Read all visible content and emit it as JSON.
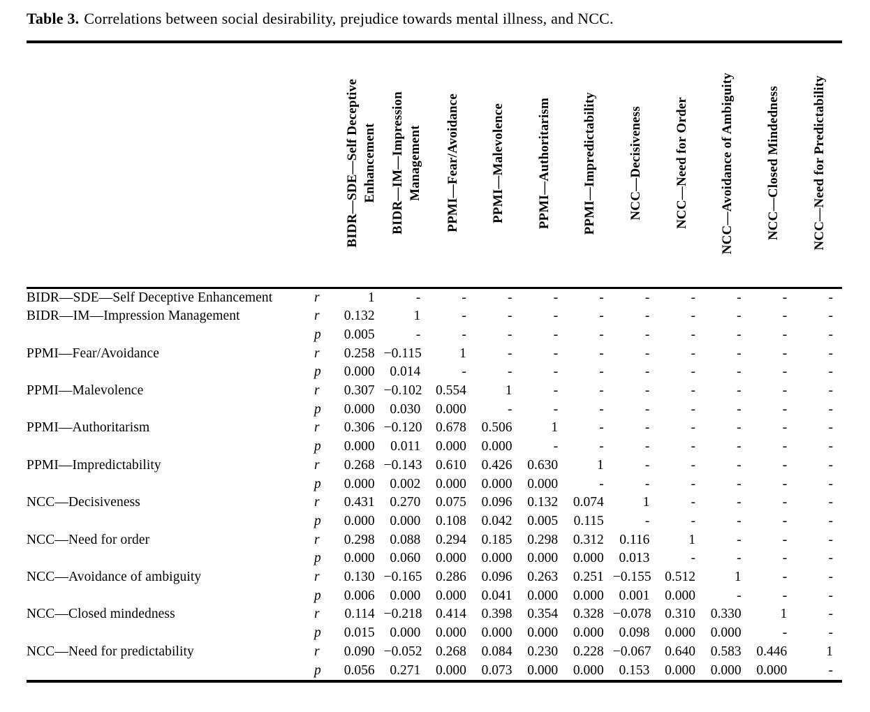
{
  "page": {
    "background": "#ffffff",
    "text_color": "#000000",
    "rule_color": "#000000"
  },
  "title": {
    "label": "Table 3.",
    "text": "Correlations between social desirability, prejudice towards mental illness, and NCC."
  },
  "table": {
    "column_headers": [
      "BIDR—SDE—Self Deceptive\nEnhancement",
      "BIDR—IM—Impression\nManagement",
      "PPMI—Fear/Avoidance",
      "PPMI—Malevolence",
      "PPMI—Authoritarism",
      "PPMI—Impredictability",
      "NCC—Decisiveness",
      "NCC—Need for Order",
      "NCC—Avoidance of Ambiguity",
      "NCC—Closed Mindedness",
      "NCC—Need for Predictability"
    ],
    "rows": [
      {
        "label": "BIDR—SDE—Self Deceptive Enhancement",
        "stat": "r",
        "values": [
          "1",
          "-",
          "-",
          "-",
          "-",
          "-",
          "-",
          "-",
          "-",
          "-",
          "-"
        ]
      },
      {
        "label": "BIDR—IM—Impression Management",
        "stat": "r",
        "values": [
          "0.132",
          "1",
          "-",
          "-",
          "-",
          "-",
          "-",
          "-",
          "-",
          "-",
          "-"
        ]
      },
      {
        "label": "",
        "stat": "p",
        "values": [
          "0.005",
          "-",
          "-",
          "-",
          "-",
          "-",
          "-",
          "-",
          "-",
          "-",
          "-"
        ]
      },
      {
        "label": "PPMI—Fear/Avoidance",
        "stat": "r",
        "values": [
          "0.258",
          "−0.115",
          "1",
          "-",
          "-",
          "-",
          "-",
          "-",
          "-",
          "-",
          "-"
        ]
      },
      {
        "label": "",
        "stat": "p",
        "values": [
          "0.000",
          "0.014",
          "-",
          "-",
          "-",
          "-",
          "-",
          "-",
          "-",
          "-",
          "-"
        ]
      },
      {
        "label": "PPMI—Malevolence",
        "stat": "r",
        "values": [
          "0.307",
          "−0.102",
          "0.554",
          "1",
          "-",
          "-",
          "-",
          "-",
          "-",
          "-",
          "-"
        ]
      },
      {
        "label": "",
        "stat": "p",
        "values": [
          "0.000",
          "0.030",
          "0.000",
          "-",
          "-",
          "-",
          "-",
          "-",
          "-",
          "-",
          "-"
        ]
      },
      {
        "label": "PPMI—Authoritarism",
        "stat": "r",
        "values": [
          "0.306",
          "−0.120",
          "0.678",
          "0.506",
          "1",
          "-",
          "-",
          "-",
          "-",
          "-",
          "-"
        ]
      },
      {
        "label": "",
        "stat": "p",
        "values": [
          "0.000",
          "0.011",
          "0.000",
          "0.000",
          "-",
          "-",
          "-",
          "-",
          "-",
          "-",
          "-"
        ]
      },
      {
        "label": "PPMI—Impredictability",
        "stat": "r",
        "values": [
          "0.268",
          "−0.143",
          "0.610",
          "0.426",
          "0.630",
          "1",
          "-",
          "-",
          "-",
          "-",
          "-"
        ]
      },
      {
        "label": "",
        "stat": "p",
        "values": [
          "0.000",
          "0.002",
          "0.000",
          "0.000",
          "0.000",
          "-",
          "-",
          "-",
          "-",
          "-",
          "-"
        ]
      },
      {
        "label": "NCC—Decisiveness",
        "stat": "r",
        "values": [
          "0.431",
          "0.270",
          "0.075",
          "0.096",
          "0.132",
          "0.074",
          "1",
          "-",
          "-",
          "-",
          "-"
        ]
      },
      {
        "label": "",
        "stat": "p",
        "values": [
          "0.000",
          "0.000",
          "0.108",
          "0.042",
          "0.005",
          "0.115",
          "-",
          "-",
          "-",
          "-",
          "-"
        ]
      },
      {
        "label": "NCC—Need for order",
        "stat": "r",
        "values": [
          "0.298",
          "0.088",
          "0.294",
          "0.185",
          "0.298",
          "0.312",
          "0.116",
          "1",
          "-",
          "-",
          "-"
        ]
      },
      {
        "label": "",
        "stat": "p",
        "values": [
          "0.000",
          "0.060",
          "0.000",
          "0.000",
          "0.000",
          "0.000",
          "0.013",
          "-",
          "-",
          "-",
          "-"
        ]
      },
      {
        "label": "NCC—Avoidance of ambiguity",
        "stat": "r",
        "values": [
          "0.130",
          "−0.165",
          "0.286",
          "0.096",
          "0.263",
          "0.251",
          "−0.155",
          "0.512",
          "1",
          "-",
          "-"
        ]
      },
      {
        "label": "",
        "stat": "p",
        "values": [
          "0.006",
          "0.000",
          "0.000",
          "0.041",
          "0.000",
          "0.000",
          "0.001",
          "0.000",
          "-",
          "-",
          "-"
        ]
      },
      {
        "label": "NCC—Closed mindedness",
        "stat": "r",
        "values": [
          "0.114",
          "−0.218",
          "0.414",
          "0.398",
          "0.354",
          "0.328",
          "−0.078",
          "0.310",
          "0.330",
          "1",
          "-"
        ]
      },
      {
        "label": "",
        "stat": "p",
        "values": [
          "0.015",
          "0.000",
          "0.000",
          "0.000",
          "0.000",
          "0.000",
          "0.098",
          "0.000",
          "0.000",
          "-",
          "-"
        ]
      },
      {
        "label": "NCC—Need for predictability",
        "stat": "r",
        "values": [
          "0.090",
          "−0.052",
          "0.268",
          "0.084",
          "0.230",
          "0.228",
          "−0.067",
          "0.640",
          "0.583",
          "0.446",
          "1"
        ]
      },
      {
        "label": "",
        "stat": "p",
        "values": [
          "0.056",
          "0.271",
          "0.000",
          "0.073",
          "0.000",
          "0.000",
          "0.153",
          "0.000",
          "0.000",
          "0.000",
          "-"
        ]
      }
    ]
  }
}
